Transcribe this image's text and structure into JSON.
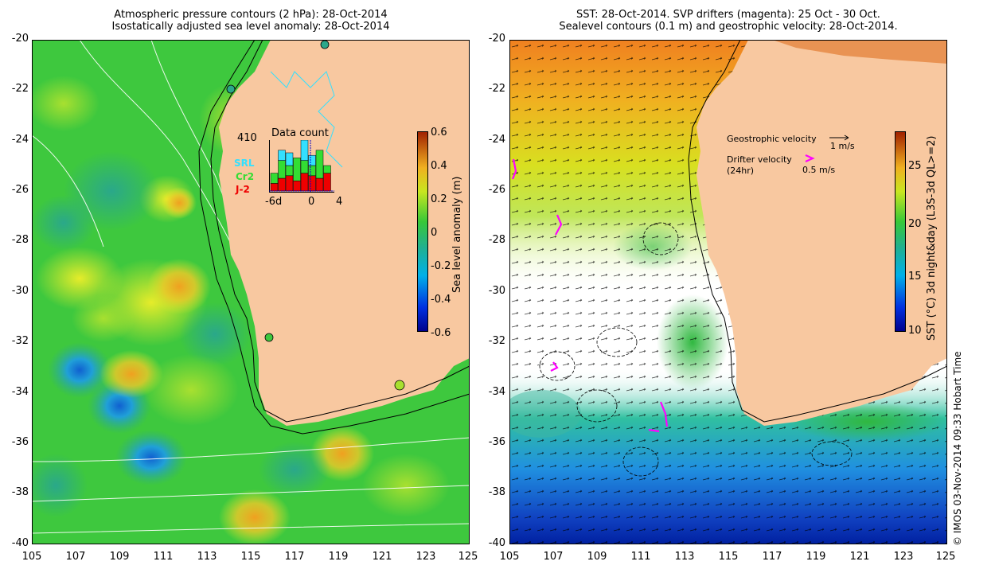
{
  "left_panel": {
    "title_line1": "Atmospheric pressure contours (2 hPa): 28-Oct-2014",
    "title_line2": "Isostatically adjusted sea level anomaly: 28-Oct-2014",
    "y_ticks": [
      "-20",
      "-22",
      "-24",
      "-26",
      "-28",
      "-30",
      "-32",
      "-34",
      "-36",
      "-38",
      "-40"
    ],
    "x_ticks": [
      "105",
      "107",
      "109",
      "111",
      "113",
      "115",
      "117",
      "119",
      "121",
      "123",
      "125"
    ],
    "colorbar": {
      "label": "Sea level anomaly (m)",
      "ticks": [
        "0.6",
        "0.4",
        "0.2",
        "0",
        "-0.2",
        "-0.4",
        "-0.6"
      ],
      "range": [
        -0.6,
        0.6
      ]
    },
    "histogram": {
      "count": "410",
      "title": "Data count",
      "x_ticks": [
        "-6d",
        "0",
        "4"
      ],
      "legend": [
        {
          "label": "SRL",
          "color": "#33e0ff"
        },
        {
          "label": "Cr2",
          "color": "#33dd33"
        },
        {
          "label": "J-2",
          "color": "#ee0000"
        }
      ],
      "bars": [
        {
          "j2": 0.15,
          "cr2": 0.2,
          "srl": 0.0
        },
        {
          "j2": 0.25,
          "cr2": 0.35,
          "srl": 0.2
        },
        {
          "j2": 0.3,
          "cr2": 0.2,
          "srl": 0.25
        },
        {
          "j2": 0.2,
          "cr2": 0.45,
          "srl": 0.0
        },
        {
          "j2": 0.35,
          "cr2": 0.25,
          "srl": 0.4
        },
        {
          "j2": 0.3,
          "cr2": 0.2,
          "srl": 0.2
        },
        {
          "j2": 0.25,
          "cr2": 0.55,
          "srl": 0.0
        },
        {
          "j2": 0.35,
          "cr2": 0.15,
          "srl": 0.0
        }
      ]
    }
  },
  "right_panel": {
    "title_line1": "SST: 28-Oct-2014. SVP drifters (magenta): 25 Oct - 30 Oct.",
    "title_line2": "Sealevel contours (0.1 m) and geostrophic velocity: 28-Oct-2014.",
    "y_ticks": [
      "-20",
      "-22",
      "-24",
      "-26",
      "-28",
      "-30",
      "-32",
      "-34",
      "-36",
      "-38",
      "-40"
    ],
    "x_ticks": [
      "105",
      "107",
      "109",
      "111",
      "113",
      "115",
      "117",
      "119",
      "121",
      "123",
      "125"
    ],
    "legend": {
      "geostrophic_label": "Geostrophic velocity",
      "geostrophic_scale": "1 m/s",
      "drifter_label_line1": "Drifter velocity",
      "drifter_label_line2": "(24hr)",
      "drifter_scale": "0.5 m/s"
    },
    "colorbar": {
      "label": "SST (°C) 3d night&day (L3S-3d QL>=2)",
      "ticks": [
        "25",
        "20",
        "15",
        "10"
      ],
      "range": [
        9,
        29
      ]
    }
  },
  "credit": "© IMOS 03-Nov-2014 09:33 Hobart Time",
  "colors": {
    "land": "#f8c8a0",
    "ocean_green": "#3ec83e",
    "sst_warm": "#f0a020",
    "magenta": "#ff00ff"
  }
}
